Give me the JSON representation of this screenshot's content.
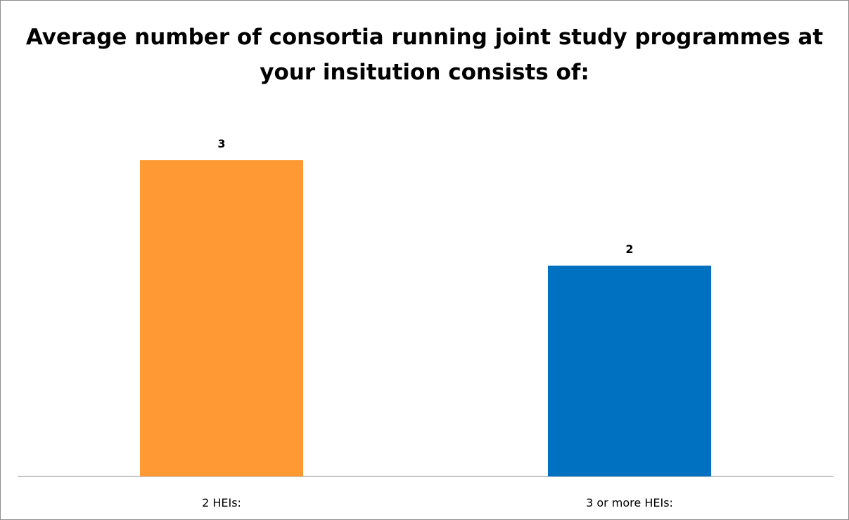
{
  "chart_data": {
    "type": "bar",
    "title": "Average number of consortia running joint study programmes at your insitution consists of:",
    "categories": [
      "2 HEIs:",
      "3 or more HEIs:"
    ],
    "values": [
      3,
      2
    ],
    "data_labels": [
      "3",
      "2"
    ],
    "bar_colors": [
      "#FF9933",
      "#0070C0"
    ],
    "ylim": [
      0,
      3.6
    ],
    "grid": false,
    "legend": "none",
    "xlabel": "",
    "ylabel": ""
  }
}
